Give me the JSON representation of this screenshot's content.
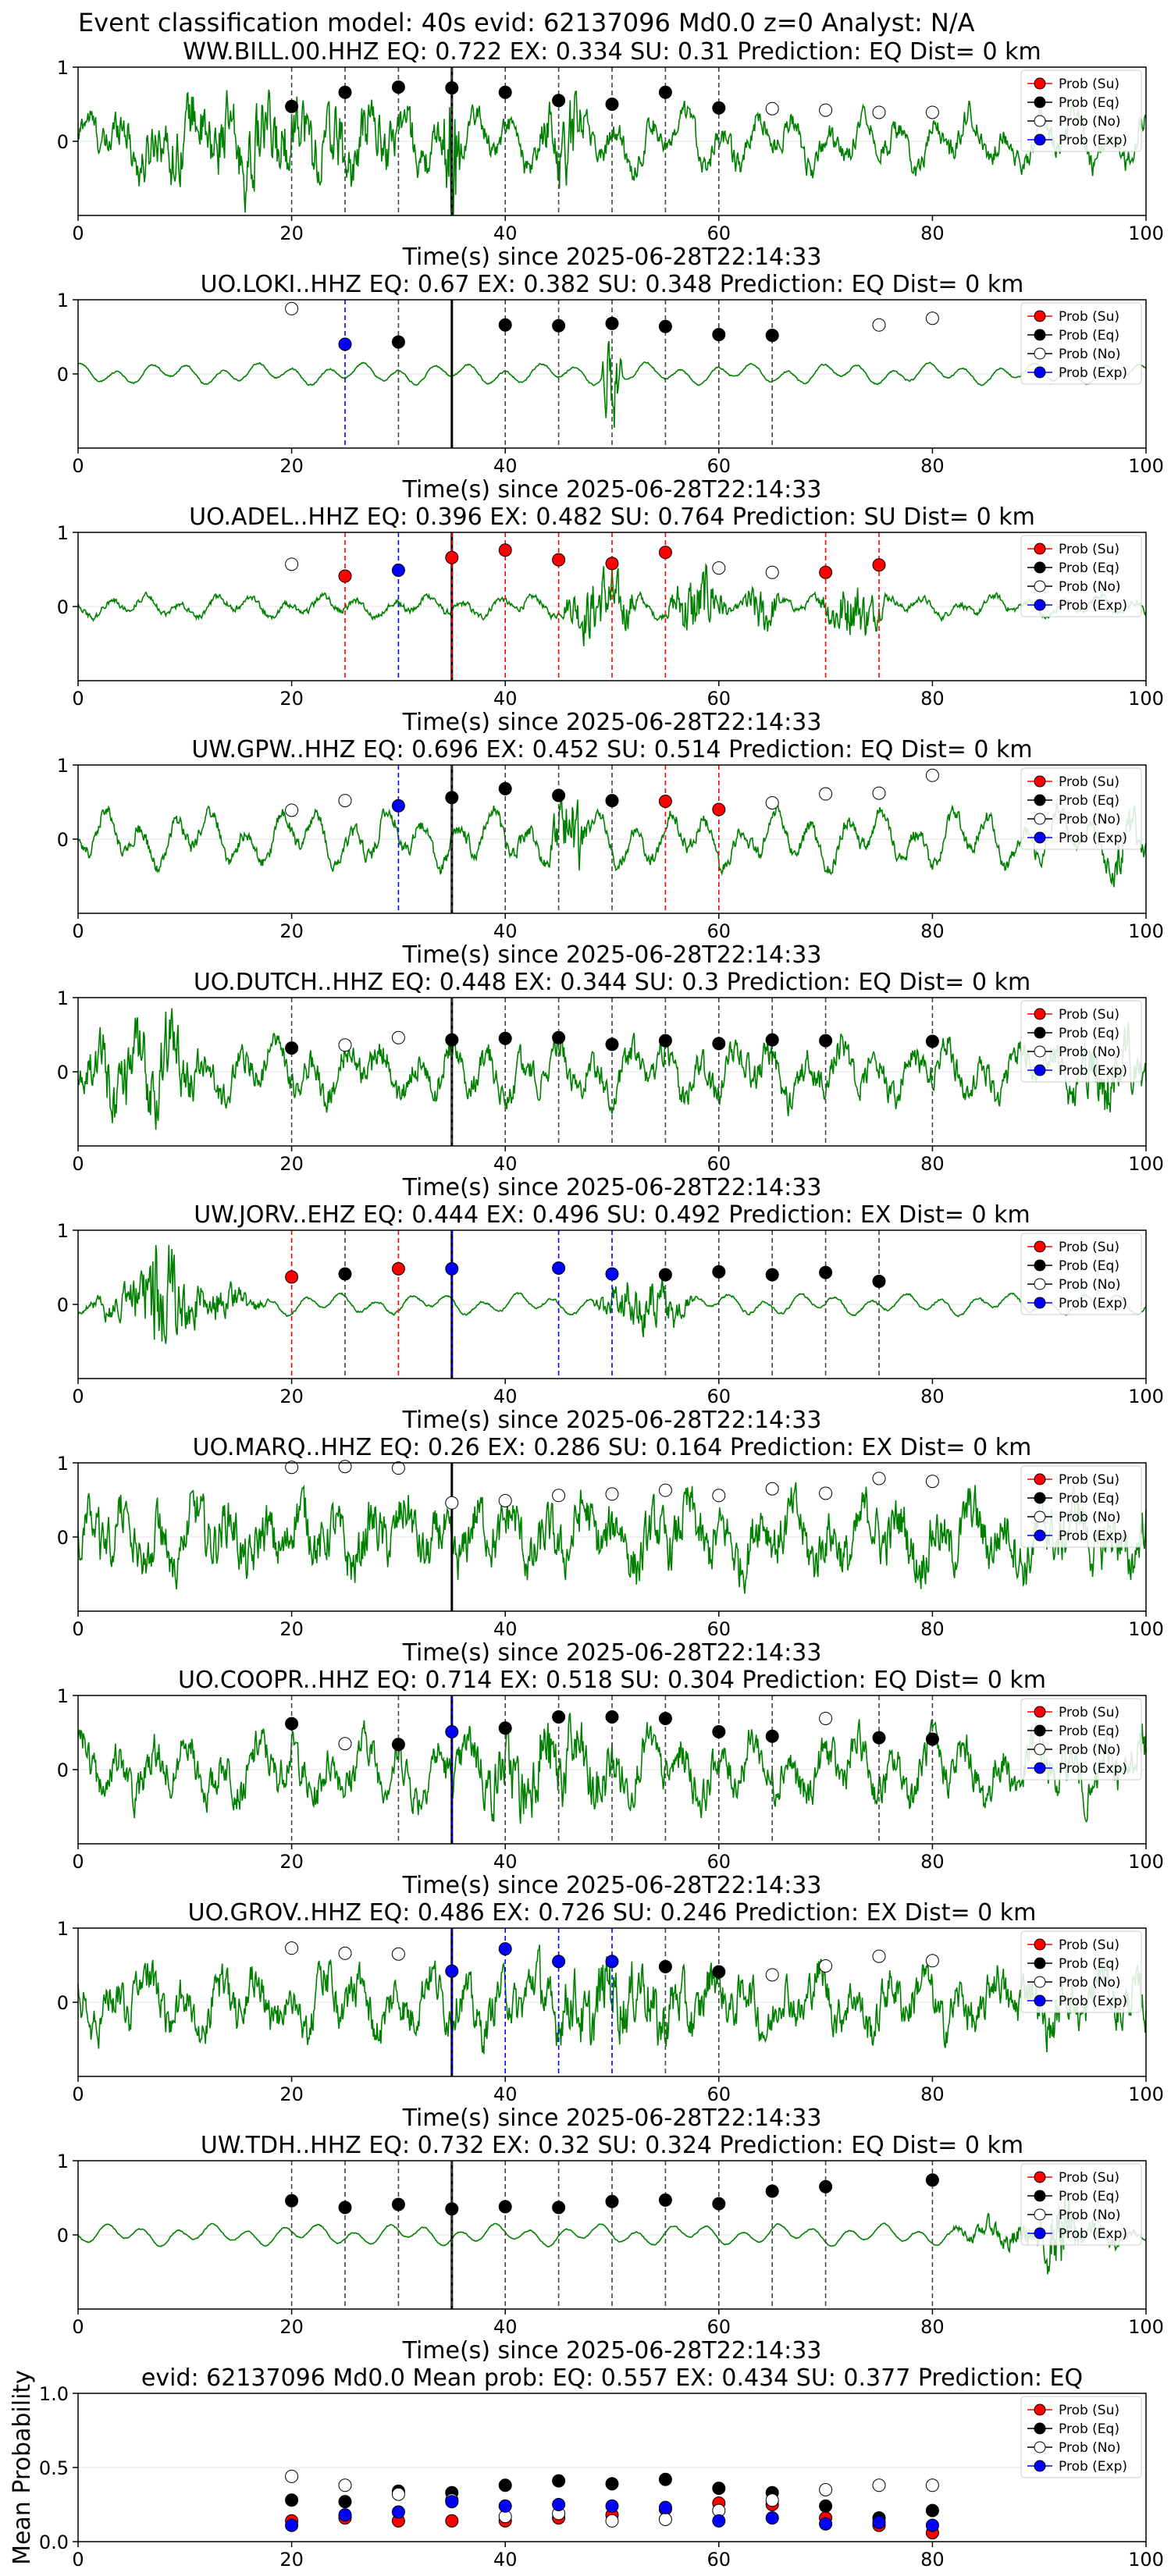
{
  "figure_title": "Event classification model: 40s evid: 62137096 Md0.0 z=0 Analyst: N/A",
  "legend": [
    "Prob (Su)",
    "Prob (Eq)",
    "Prob (No)",
    "Prob (Exp)"
  ],
  "colors": {
    "su": "#ff0000",
    "eq": "#000000",
    "no": "#ffffff",
    "exp": "#0000ff",
    "trace": "#008000"
  },
  "xlabel": "Time(s) since 2025-06-28T22:14:33",
  "chart_data": [
    {
      "type": "line",
      "title": "WW.BILL.00.HHZ   EQ: 0.722  EX: 0.334  SU: 0.31   Prediction: EQ    Dist= 0 km",
      "xlim": [
        0,
        100
      ],
      "ylim": [
        -1,
        1
      ],
      "xticks": [
        0,
        20,
        40,
        60,
        80,
        100
      ],
      "yticks": [
        0,
        1
      ],
      "arrival": 35,
      "noise": 0.28,
      "events": [
        [
          0,
          36,
          0.55
        ],
        [
          34,
          36,
          1.6
        ],
        [
          43,
          48,
          0.7
        ]
      ],
      "markers": [
        [
          20,
          0.47,
          "eq"
        ],
        [
          25,
          0.66,
          "eq"
        ],
        [
          30,
          0.73,
          "eq"
        ],
        [
          35,
          0.72,
          "eq"
        ],
        [
          40,
          0.66,
          "eq"
        ],
        [
          45,
          0.55,
          "eq"
        ],
        [
          50,
          0.5,
          "eq"
        ],
        [
          55,
          0.66,
          "eq"
        ],
        [
          60,
          0.45,
          "eq"
        ],
        [
          65,
          0.44,
          "no"
        ],
        [
          70,
          0.42,
          "no"
        ],
        [
          75,
          0.39,
          "no"
        ],
        [
          80,
          0.39,
          "no"
        ]
      ]
    },
    {
      "type": "line",
      "title": "UO.LOKI..HHZ   EQ: 0.67  EX: 0.382  SU: 0.348   Prediction: EQ    Dist= 0 km",
      "xlim": [
        0,
        100
      ],
      "ylim": [
        -1,
        1
      ],
      "xticks": [
        0,
        20,
        40,
        60,
        80,
        100
      ],
      "yticks": [
        0,
        1
      ],
      "arrival": 35,
      "noise": 0.02,
      "events": [
        [
          49,
          51,
          1.3
        ]
      ],
      "markers": [
        [
          20,
          0.88,
          "no"
        ],
        [
          25,
          0.4,
          "exp"
        ],
        [
          30,
          0.43,
          "eq"
        ],
        [
          40,
          0.66,
          "eq"
        ],
        [
          45,
          0.65,
          "eq"
        ],
        [
          50,
          0.68,
          "eq"
        ],
        [
          55,
          0.64,
          "eq"
        ],
        [
          60,
          0.53,
          "eq"
        ],
        [
          65,
          0.52,
          "eq"
        ],
        [
          75,
          0.66,
          "no"
        ],
        [
          80,
          0.75,
          "no"
        ]
      ]
    },
    {
      "type": "line",
      "title": "UO.ADEL..HHZ   EQ: 0.396  EX: 0.482  SU: 0.764   Prediction: SU    Dist= 0 km",
      "xlim": [
        0,
        100
      ],
      "ylim": [
        -1,
        1
      ],
      "xticks": [
        0,
        20,
        40,
        60,
        80,
        100
      ],
      "yticks": [
        0,
        1
      ],
      "arrival": 35,
      "noise": 0.08,
      "events": [
        [
          45,
          53,
          0.7
        ],
        [
          55,
          61,
          0.75
        ],
        [
          62,
          66,
          0.5
        ],
        [
          69,
          76,
          0.6
        ]
      ],
      "markers": [
        [
          20,
          0.57,
          "no"
        ],
        [
          25,
          0.41,
          "su"
        ],
        [
          30,
          0.49,
          "exp"
        ],
        [
          35,
          0.66,
          "su"
        ],
        [
          40,
          0.76,
          "su"
        ],
        [
          45,
          0.63,
          "su"
        ],
        [
          50,
          0.58,
          "su"
        ],
        [
          55,
          0.73,
          "su"
        ],
        [
          60,
          0.52,
          "no"
        ],
        [
          65,
          0.46,
          "no"
        ],
        [
          70,
          0.46,
          "su"
        ],
        [
          75,
          0.56,
          "su"
        ]
      ]
    },
    {
      "type": "line",
      "title": "UW.GPW..HHZ   EQ: 0.696  EX: 0.452  SU: 0.514   Prediction: EQ    Dist= 0 km",
      "xlim": [
        0,
        100
      ],
      "ylim": [
        -1,
        1
      ],
      "xticks": [
        0,
        20,
        40,
        60,
        80,
        100
      ],
      "yticks": [
        0,
        1
      ],
      "arrival": 35,
      "noise": 0.18,
      "events": [
        [
          44,
          48,
          0.9
        ],
        [
          95,
          100,
          0.4
        ]
      ],
      "markers": [
        [
          20,
          0.39,
          "no"
        ],
        [
          25,
          0.52,
          "no"
        ],
        [
          30,
          0.45,
          "exp"
        ],
        [
          35,
          0.56,
          "eq"
        ],
        [
          40,
          0.68,
          "eq"
        ],
        [
          45,
          0.59,
          "eq"
        ],
        [
          50,
          0.52,
          "eq"
        ],
        [
          55,
          0.51,
          "su"
        ],
        [
          60,
          0.4,
          "su"
        ],
        [
          65,
          0.49,
          "no"
        ],
        [
          70,
          0.61,
          "no"
        ],
        [
          75,
          0.62,
          "no"
        ],
        [
          80,
          0.86,
          "no"
        ]
      ]
    },
    {
      "type": "line",
      "title": "UO.DUTCH..HHZ   EQ: 0.448  EX: 0.344  SU: 0.3   Prediction: EQ    Dist= 0 km",
      "xlim": [
        0,
        100
      ],
      "ylim": [
        -1,
        1
      ],
      "xticks": [
        0,
        20,
        40,
        60,
        80,
        100
      ],
      "yticks": [
        0,
        1
      ],
      "arrival": 35,
      "noise": 0.35,
      "events": [
        [
          0,
          12,
          0.6
        ],
        [
          93,
          100,
          0.5
        ]
      ],
      "markers": [
        [
          20,
          0.32,
          "eq"
        ],
        [
          25,
          0.36,
          "no"
        ],
        [
          30,
          0.46,
          "no"
        ],
        [
          35,
          0.43,
          "eq"
        ],
        [
          40,
          0.45,
          "eq"
        ],
        [
          45,
          0.46,
          "eq"
        ],
        [
          50,
          0.37,
          "eq"
        ],
        [
          55,
          0.42,
          "eq"
        ],
        [
          60,
          0.38,
          "eq"
        ],
        [
          65,
          0.43,
          "eq"
        ],
        [
          70,
          0.42,
          "eq"
        ],
        [
          80,
          0.41,
          "eq"
        ]
      ]
    },
    {
      "type": "line",
      "title": "UW.JORV..EHZ   EQ: 0.444  EX: 0.496  SU: 0.492   Prediction: EX    Dist= 0 km",
      "xlim": [
        0,
        100
      ],
      "ylim": [
        -1,
        1
      ],
      "xticks": [
        0,
        20,
        40,
        60,
        80,
        100
      ],
      "yticks": [
        0,
        1
      ],
      "arrival": 35,
      "noise": 0.03,
      "events": [
        [
          0,
          18,
          0.5
        ],
        [
          5,
          10,
          0.9
        ],
        [
          48,
          58,
          0.55
        ]
      ],
      "markers": [
        [
          20,
          0.37,
          "su"
        ],
        [
          25,
          0.41,
          "eq"
        ],
        [
          30,
          0.48,
          "su"
        ],
        [
          35,
          0.48,
          "exp"
        ],
        [
          45,
          0.49,
          "exp"
        ],
        [
          50,
          0.41,
          "exp"
        ],
        [
          55,
          0.4,
          "eq"
        ],
        [
          60,
          0.44,
          "eq"
        ],
        [
          65,
          0.4,
          "eq"
        ],
        [
          70,
          0.43,
          "eq"
        ],
        [
          75,
          0.31,
          "eq"
        ]
      ]
    },
    {
      "type": "line",
      "title": "UO.MARQ..HHZ   EQ: 0.26  EX: 0.286  SU: 0.164   Prediction: EX    Dist= 0 km",
      "xlim": [
        0,
        100
      ],
      "ylim": [
        -1,
        1
      ],
      "xticks": [
        0,
        20,
        40,
        60,
        80,
        100
      ],
      "yticks": [
        0,
        1
      ],
      "arrival": 35,
      "noise": 0.6,
      "events": [],
      "markers": [
        [
          20,
          0.94,
          "no"
        ],
        [
          25,
          0.95,
          "no"
        ],
        [
          30,
          0.93,
          "no"
        ],
        [
          35,
          0.46,
          "no"
        ],
        [
          40,
          0.49,
          "no"
        ],
        [
          45,
          0.56,
          "no"
        ],
        [
          50,
          0.58,
          "no"
        ],
        [
          55,
          0.63,
          "no"
        ],
        [
          60,
          0.56,
          "no"
        ],
        [
          65,
          0.65,
          "no"
        ],
        [
          70,
          0.59,
          "no"
        ],
        [
          75,
          0.79,
          "no"
        ],
        [
          80,
          0.75,
          "no"
        ]
      ]
    },
    {
      "type": "line",
      "title": "UO.COOPR..HHZ   EQ: 0.714  EX: 0.518  SU: 0.304   Prediction: EQ    Dist= 0 km",
      "xlim": [
        0,
        100
      ],
      "ylim": [
        -1,
        1
      ],
      "xticks": [
        0,
        20,
        40,
        60,
        80,
        100
      ],
      "yticks": [
        0,
        1
      ],
      "arrival": 35,
      "noise": 0.45,
      "events": [
        [
          36,
          52,
          0.45
        ]
      ],
      "markers": [
        [
          20,
          0.62,
          "eq"
        ],
        [
          25,
          0.35,
          "no"
        ],
        [
          30,
          0.34,
          "eq"
        ],
        [
          35,
          0.51,
          "exp"
        ],
        [
          40,
          0.56,
          "eq"
        ],
        [
          45,
          0.71,
          "eq"
        ],
        [
          50,
          0.71,
          "eq"
        ],
        [
          55,
          0.69,
          "eq"
        ],
        [
          60,
          0.51,
          "eq"
        ],
        [
          65,
          0.45,
          "eq"
        ],
        [
          70,
          0.69,
          "no"
        ],
        [
          75,
          0.43,
          "eq"
        ],
        [
          80,
          0.41,
          "eq"
        ]
      ]
    },
    {
      "type": "line",
      "title": "UO.GROV..HHZ   EQ: 0.486  EX: 0.726  SU: 0.246   Prediction: EX    Dist= 0 km",
      "xlim": [
        0,
        100
      ],
      "ylim": [
        -1,
        1
      ],
      "xticks": [
        0,
        20,
        40,
        60,
        80,
        100
      ],
      "yticks": [
        0,
        1
      ],
      "arrival": 35,
      "noise": 0.5,
      "events": [
        [
          40,
          60,
          0.3
        ]
      ],
      "markers": [
        [
          20,
          0.73,
          "no"
        ],
        [
          25,
          0.66,
          "no"
        ],
        [
          30,
          0.65,
          "no"
        ],
        [
          35,
          0.42,
          "exp"
        ],
        [
          40,
          0.72,
          "exp"
        ],
        [
          45,
          0.55,
          "exp"
        ],
        [
          50,
          0.55,
          "exp"
        ],
        [
          55,
          0.48,
          "eq"
        ],
        [
          60,
          0.41,
          "eq"
        ],
        [
          65,
          0.37,
          "no"
        ],
        [
          70,
          0.49,
          "no"
        ],
        [
          75,
          0.62,
          "no"
        ],
        [
          80,
          0.56,
          "no"
        ]
      ]
    },
    {
      "type": "line",
      "title": "UW.TDH..HHZ   EQ: 0.732  EX: 0.32  SU: 0.324   Prediction: EQ    Dist= 0 km",
      "xlim": [
        0,
        100
      ],
      "ylim": [
        -1,
        1
      ],
      "xticks": [
        0,
        20,
        40,
        60,
        80,
        100
      ],
      "yticks": [
        0,
        1
      ],
      "arrival": 35,
      "noise": 0.015,
      "events": [
        [
          81,
          100,
          0.3
        ],
        [
          90,
          94,
          0.7
        ]
      ],
      "markers": [
        [
          20,
          0.46,
          "eq"
        ],
        [
          25,
          0.37,
          "eq"
        ],
        [
          30,
          0.41,
          "eq"
        ],
        [
          35,
          0.35,
          "eq"
        ],
        [
          40,
          0.38,
          "eq"
        ],
        [
          45,
          0.37,
          "eq"
        ],
        [
          50,
          0.45,
          "eq"
        ],
        [
          55,
          0.47,
          "eq"
        ],
        [
          60,
          0.42,
          "eq"
        ],
        [
          65,
          0.59,
          "eq"
        ],
        [
          70,
          0.65,
          "eq"
        ],
        [
          80,
          0.74,
          "eq"
        ]
      ]
    },
    {
      "type": "scatter",
      "title": "evid: 62137096  Md0.0   Mean prob:   EQ: 0.557  EX: 0.434  SU: 0.377   Prediction: EQ",
      "ylabel": "Mean Probability",
      "xlim": [
        0,
        100
      ],
      "ylim": [
        0,
        1
      ],
      "xticks": [
        0,
        20,
        40,
        60,
        80,
        100
      ],
      "yticks": [
        0.0,
        0.5,
        1.0
      ],
      "series": [
        {
          "name": "Prob (Su)",
          "key": "su",
          "x": [
            20,
            25,
            30,
            35,
            40,
            45,
            50,
            55,
            60,
            65,
            70,
            75,
            80
          ],
          "y": [
            0.14,
            0.16,
            0.14,
            0.14,
            0.14,
            0.16,
            0.18,
            0.22,
            0.26,
            0.25,
            0.16,
            0.11,
            0.06
          ]
        },
        {
          "name": "Prob (Eq)",
          "key": "eq",
          "x": [
            20,
            25,
            30,
            35,
            40,
            45,
            50,
            55,
            60,
            65,
            70,
            75,
            80
          ],
          "y": [
            0.28,
            0.27,
            0.34,
            0.33,
            0.38,
            0.41,
            0.39,
            0.42,
            0.36,
            0.33,
            0.24,
            0.16,
            0.21
          ]
        },
        {
          "name": "Prob (No)",
          "key": "no",
          "x": [
            20,
            25,
            30,
            35,
            40,
            45,
            50,
            55,
            60,
            65,
            70,
            75,
            80
          ],
          "y": [
            0.44,
            0.38,
            0.32,
            0.28,
            0.17,
            0.19,
            0.14,
            0.15,
            0.21,
            0.28,
            0.35,
            0.38,
            0.38
          ]
        },
        {
          "name": "Prob (Exp)",
          "key": "exp",
          "x": [
            20,
            25,
            30,
            35,
            40,
            45,
            50,
            55,
            60,
            65,
            70,
            75,
            80
          ],
          "y": [
            0.11,
            0.18,
            0.2,
            0.27,
            0.24,
            0.25,
            0.24,
            0.23,
            0.14,
            0.16,
            0.12,
            0.13,
            0.11
          ]
        }
      ]
    }
  ]
}
